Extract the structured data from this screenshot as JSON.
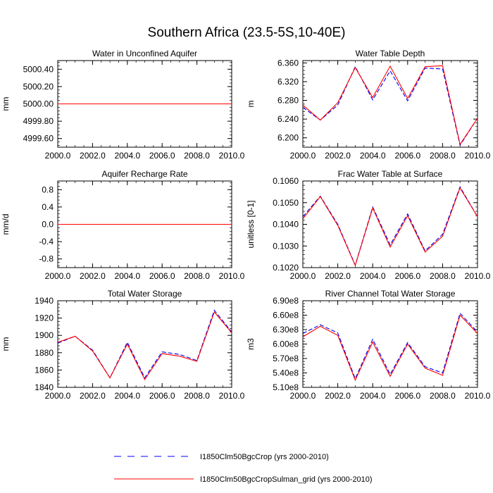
{
  "figure": {
    "title": "Southern Africa (23.5-5S,10-40E)"
  },
  "legend": {
    "placement": "bottom-center",
    "items": [
      {
        "label": "I1850Clm50BgcCrop (yrs 2000-2010)",
        "color": "#0000ff",
        "dash": "dashed"
      },
      {
        "label": "I1850Clm50BgcCropSulman_grid (yrs 2000-2010)",
        "color": "#ff0000",
        "dash": "solid"
      }
    ]
  },
  "chart_data": [
    {
      "type": "line",
      "title": "Water in Unconfined Aquifer",
      "ylabel": "mm",
      "xlim": [
        2000,
        2010
      ],
      "ylim": [
        4999.5,
        5000.5
      ],
      "yticks": [
        4999.6,
        4999.8,
        5000.0,
        5000.2,
        5000.4
      ],
      "yticklabels": [
        "4999.60",
        "4999.80",
        "5000.00",
        "5000.20",
        "5000.40"
      ],
      "xticks": [
        2000,
        2002,
        2004,
        2006,
        2008,
        2010
      ],
      "xticklabels": [
        "2000.0",
        "2002.0",
        "2004.0",
        "2006.0",
        "2008.0",
        "2010.0"
      ],
      "x": [
        2000,
        2001,
        2002,
        2003,
        2004,
        2005,
        2006,
        2007,
        2008,
        2009,
        2010
      ],
      "series": [
        {
          "name": "I1850Clm50BgcCrop (yrs 2000-2010)",
          "values": [
            5000,
            5000,
            5000,
            5000,
            5000,
            5000,
            5000,
            5000,
            5000,
            5000,
            5000
          ]
        },
        {
          "name": "I1850Clm50BgcCropSulman_grid (yrs 2000-2010)",
          "values": [
            5000,
            5000,
            5000,
            5000,
            5000,
            5000,
            5000,
            5000,
            5000,
            5000,
            5000
          ]
        }
      ]
    },
    {
      "type": "line",
      "title": "Water Table Depth",
      "ylabel": "m",
      "xlim": [
        2000,
        2010
      ],
      "ylim": [
        6.18,
        6.365
      ],
      "yticks": [
        6.2,
        6.24,
        6.28,
        6.32,
        6.36
      ],
      "yticklabels": [
        "6.200",
        "6.240",
        "6.280",
        "6.320",
        "6.360"
      ],
      "xticks": [
        2000,
        2002,
        2004,
        2006,
        2008,
        2010
      ],
      "xticklabels": [
        "2000.0",
        "2002.0",
        "2004.0",
        "2006.0",
        "2008.0",
        "2010.0"
      ],
      "x": [
        2000,
        2001,
        2002,
        2003,
        2004,
        2005,
        2006,
        2007,
        2008,
        2009,
        2010
      ],
      "series": [
        {
          "name": "I1850Clm50BgcCrop (yrs 2000-2010)",
          "values": [
            6.265,
            6.238,
            6.27,
            6.352,
            6.281,
            6.343,
            6.279,
            6.349,
            6.347,
            6.184,
            6.242
          ]
        },
        {
          "name": "I1850Clm50BgcCropSulman_grid (yrs 2000-2010)",
          "values": [
            6.27,
            6.238,
            6.275,
            6.35,
            6.286,
            6.353,
            6.284,
            6.352,
            6.354,
            6.186,
            6.242
          ]
        }
      ]
    },
    {
      "type": "line",
      "title": "Aquifer Recharge Rate",
      "ylabel": "mm/d",
      "xlim": [
        2000,
        2010
      ],
      "ylim": [
        -1.0,
        1.0
      ],
      "yticks": [
        -0.8,
        -0.4,
        0.0,
        0.4,
        0.8
      ],
      "yticklabels": [
        "-0.8",
        "-0.4",
        "0.0",
        "0.4",
        "0.8"
      ],
      "xticks": [
        2000,
        2002,
        2004,
        2006,
        2008,
        2010
      ],
      "xticklabels": [
        "2000.0",
        "2002.0",
        "2004.0",
        "2006.0",
        "2008.0",
        "2010.0"
      ],
      "x": [
        2000,
        2001,
        2002,
        2003,
        2004,
        2005,
        2006,
        2007,
        2008,
        2009,
        2010
      ],
      "series": [
        {
          "name": "I1850Clm50BgcCrop (yrs 2000-2010)",
          "values": [
            0,
            0,
            0,
            0,
            0,
            0,
            0,
            0,
            0,
            0,
            0
          ]
        },
        {
          "name": "I1850Clm50BgcCropSulman_grid (yrs 2000-2010)",
          "values": [
            0,
            0,
            0,
            0,
            0,
            0,
            0,
            0,
            0,
            0,
            0
          ]
        }
      ]
    },
    {
      "type": "line",
      "title": "Frac Water Table at Surface",
      "ylabel": "unitless [0-1]",
      "xlim": [
        2000,
        2010
      ],
      "ylim": [
        0.102,
        0.106
      ],
      "yticks": [
        0.102,
        0.103,
        0.104,
        0.105,
        0.106
      ],
      "yticklabels": [
        "0.1020",
        "0.1030",
        "0.1040",
        "0.1050",
        "0.1060"
      ],
      "xticks": [
        2000,
        2002,
        2004,
        2006,
        2008,
        2010
      ],
      "xticklabels": [
        "2000.0",
        "2002.0",
        "2004.0",
        "2006.0",
        "2008.0",
        "2010.0"
      ],
      "x": [
        2000,
        2001,
        2002,
        2003,
        2004,
        2005,
        2006,
        2007,
        2008,
        2009,
        2010
      ],
      "series": [
        {
          "name": "I1850Clm50BgcCrop (yrs 2000-2010)",
          "values": [
            0.10435,
            0.1053,
            0.104,
            0.10212,
            0.1048,
            0.10305,
            0.10448,
            0.10277,
            0.10354,
            0.10573,
            0.10435
          ]
        },
        {
          "name": "I1850Clm50BgcCropSulman_grid (yrs 2000-2010)",
          "values": [
            0.10425,
            0.10528,
            0.10395,
            0.1021,
            0.10475,
            0.10295,
            0.1044,
            0.10272,
            0.10345,
            0.10568,
            0.10435
          ]
        }
      ]
    },
    {
      "type": "line",
      "title": "Total Water Storage",
      "ylabel": "mm",
      "xlim": [
        2000,
        2010
      ],
      "ylim": [
        1840,
        1940
      ],
      "yticks": [
        1840,
        1860,
        1880,
        1900,
        1920,
        1940
      ],
      "yticklabels": [
        "1840",
        "1860",
        "1880",
        "1900",
        "1920",
        "1940"
      ],
      "xticks": [
        2000,
        2002,
        2004,
        2006,
        2008,
        2010
      ],
      "xticklabels": [
        "2000.0",
        "2002.0",
        "2004.0",
        "2006.0",
        "2008.0",
        "2010.0"
      ],
      "x": [
        2000,
        2001,
        2002,
        2003,
        2004,
        2005,
        2006,
        2007,
        2008,
        2009,
        2010
      ],
      "series": [
        {
          "name": "I1850Clm50BgcCrop (yrs 2000-2010)",
          "values": [
            1891,
            1899,
            1883,
            1851,
            1892,
            1851,
            1881,
            1878,
            1871,
            1929,
            1904
          ]
        },
        {
          "name": "I1850Clm50BgcCropSulman_grid (yrs 2000-2010)",
          "values": [
            1892,
            1899,
            1882,
            1851,
            1890,
            1849,
            1879,
            1876,
            1870,
            1927,
            1903
          ]
        }
      ]
    },
    {
      "type": "line",
      "title": "River Channel Total Water Storage",
      "ylabel": "m3",
      "xlim": [
        2000,
        2010
      ],
      "ylim": [
        510000000,
        690000000
      ],
      "yticks": [
        510000000,
        540000000,
        570000000,
        600000000,
        630000000,
        660000000,
        690000000
      ],
      "yticklabels": [
        "5.10e8",
        "5.40e8",
        "5.70e8",
        "6.00e8",
        "6.30e8",
        "6.60e8",
        "6.90e8"
      ],
      "xticks": [
        2000,
        2002,
        2004,
        2006,
        2008,
        2010
      ],
      "xticklabels": [
        "2000.0",
        "2002.0",
        "2004.0",
        "2006.0",
        "2008.0",
        "2010.0"
      ],
      "x": [
        2000,
        2001,
        2002,
        2003,
        2004,
        2005,
        2006,
        2007,
        2008,
        2009,
        2010
      ],
      "series": [
        {
          "name": "I1850Clm50BgcCrop (yrs 2000-2010)",
          "values": [
            622000000,
            640000000,
            623000000,
            528000000,
            610000000,
            537000000,
            603000000,
            553000000,
            540000000,
            664000000,
            625000000
          ]
        },
        {
          "name": "I1850Clm50BgcCropSulman_grid (yrs 2000-2010)",
          "values": [
            615000000,
            637000000,
            618000000,
            525000000,
            604000000,
            533000000,
            600000000,
            550000000,
            535000000,
            660000000,
            622000000
          ]
        }
      ]
    }
  ]
}
